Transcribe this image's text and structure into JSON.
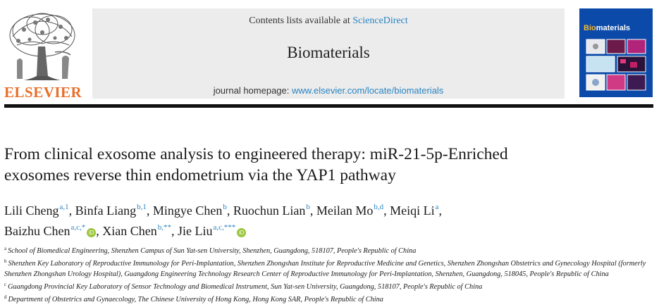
{
  "publisher": {
    "name": "ELSEVIER"
  },
  "masthead": {
    "contents_prefix": "Contents lists available at ",
    "contents_link": "ScienceDirect",
    "journal_title": "Biomaterials",
    "homepage_prefix": "journal homepage: ",
    "homepage_link": "www.elsevier.com/locate/biomaterials"
  },
  "cover": {
    "title_first": "Bio",
    "title_rest": "materials"
  },
  "article": {
    "title_line1": "From clinical exosome analysis to engineered therapy: miR-21-5p-Enriched",
    "title_line2": "exosomes reverse thin endometrium via the YAP1 pathway"
  },
  "authors": [
    {
      "name": "Lili Cheng",
      "sup": "a,1",
      "orcid": false,
      "sep": ", "
    },
    {
      "name": "Binfa Liang",
      "sup": "b,1",
      "orcid": false,
      "sep": ", "
    },
    {
      "name": "Mingye Chen",
      "sup": "b",
      "orcid": false,
      "sep": ", "
    },
    {
      "name": "Ruochun Lian",
      "sup": "b",
      "orcid": false,
      "sep": ", "
    },
    {
      "name": "Meilan Mo",
      "sup": "b,d",
      "orcid": false,
      "sep": ", "
    },
    {
      "name": "Meiqi Li",
      "sup": "a",
      "orcid": false,
      "sep": ",",
      "break_after": true
    },
    {
      "name": "Baizhu Chen",
      "sup": "a,c,*",
      "orcid": true,
      "sep": ", "
    },
    {
      "name": "Xian Chen",
      "sup": "b,**",
      "orcid": false,
      "sep": ", "
    },
    {
      "name": "Jie Liu",
      "sup": "a,c,***",
      "orcid": true,
      "sep": ""
    }
  ],
  "orcid_label": "iD",
  "affiliations": [
    {
      "key": "a",
      "text": "School of Biomedical Engineering, Shenzhen Campus of Sun Yat-sen University, Shenzhen, Guangdong, 518107, People's Republic of China"
    },
    {
      "key": "b",
      "text": "Shenzhen Key Laboratory of Reproductive Immunology for Peri-Implantation, Shenzhen Zhongshan Institute for Reproductive Medicine and Genetics, Shenzhen Zhongshan Obstetrics and Gynecology Hospital (formerly Shenzhen Zhongshan Urology Hospital), Guangdong Engineering Technology Research Center of Reproductive Immunology for Peri-Implantation, Shenzhen, Guangdong, 518045, People's Republic of China"
    },
    {
      "key": "c",
      "text": "Guangdong Provincial Key Laboratory of Sensor Technology and Biomedical Instrument, Sun Yat-sen University, Guangdong, 518107, People's Republic of China"
    },
    {
      "key": "d",
      "text": "Department of Obstetrics and Gynaecology, The Chinese University of Hong Kong, Hong Kong SAR, People's Republic of China"
    }
  ],
  "colors": {
    "publisher_orange": "#e8702a",
    "link_blue": "#2a84c2",
    "cover_blue": "#0b4aa8",
    "orcid_green": "#9bc53d"
  }
}
